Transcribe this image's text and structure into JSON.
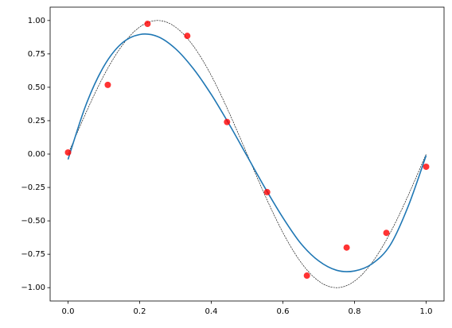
{
  "chart_data": {
    "type": "scatter",
    "x": [
      0,
      0.111,
      0.222,
      0.333,
      0.444,
      0.556,
      0.667,
      0.778,
      0.889,
      1
    ],
    "values": [
      0.012,
      0.518,
      0.975,
      0.885,
      0.24,
      -0.285,
      -0.91,
      -0.7,
      -0.59,
      -0.095
    ],
    "color": "#ff0000",
    "curves": [
      {
        "color": "#000000",
        "dashed": true,
        "x": [
          0,
          0.025,
          0.05,
          0.075,
          0.1,
          0.125,
          0.15,
          0.175,
          0.2,
          0.225,
          0.25,
          0.275,
          0.3,
          0.325,
          0.35,
          0.375,
          0.4,
          0.425,
          0.45,
          0.475,
          0.5,
          0.525,
          0.55,
          0.575,
          0.6,
          0.625,
          0.65,
          0.675,
          0.7,
          0.725,
          0.75,
          0.775,
          0.8,
          0.825,
          0.85,
          0.875,
          0.9,
          0.925,
          0.95,
          0.975,
          1
        ],
        "values": [
          0,
          0.156,
          0.309,
          0.454,
          0.588,
          0.707,
          0.809,
          0.891,
          0.951,
          0.988,
          1,
          0.988,
          0.951,
          0.891,
          0.809,
          0.707,
          0.588,
          0.454,
          0.309,
          0.156,
          0,
          -0.156,
          -0.309,
          -0.454,
          -0.588,
          -0.707,
          -0.809,
          -0.891,
          -0.951,
          -0.988,
          -1,
          -0.988,
          -0.951,
          -0.891,
          -0.809,
          -0.707,
          -0.588,
          -0.454,
          -0.309,
          -0.156,
          0
        ]
      },
      {
        "color": "#1f77b4",
        "dashed": false,
        "x": [
          0,
          0.05,
          0.1,
          0.15,
          0.2,
          0.25,
          0.3,
          0.35,
          0.4,
          0.45,
          0.5,
          0.55,
          0.6,
          0.65,
          0.7,
          0.75,
          0.8,
          0.85,
          0.9,
          0.95,
          1
        ],
        "values": [
          -0.04,
          0.368,
          0.657,
          0.829,
          0.895,
          0.88,
          0.789,
          0.639,
          0.446,
          0.223,
          -0.015,
          -0.253,
          -0.476,
          -0.669,
          -0.8,
          -0.87,
          -0.875,
          -0.82,
          -0.68,
          -0.39,
          -0.01
        ]
      }
    ],
    "xlim": [
      -0.05,
      1.05
    ],
    "ylim": [
      -1.1,
      1.1
    ],
    "xticks": [
      {
        "value": 0,
        "label": "0.0"
      },
      {
        "value": 0.2,
        "label": "0.2"
      },
      {
        "value": 0.4,
        "label": "0.4"
      },
      {
        "value": 0.6,
        "label": "0.6"
      },
      {
        "value": 0.8,
        "label": "0.8"
      },
      {
        "value": 1,
        "label": "1.0"
      }
    ],
    "yticks": [
      {
        "value": -1,
        "label": "−1.00"
      },
      {
        "value": -0.75,
        "label": "−0.75"
      },
      {
        "value": -0.5,
        "label": "−0.50"
      },
      {
        "value": -0.25,
        "label": "−0.25"
      },
      {
        "value": 0,
        "label": "0.00"
      },
      {
        "value": 0.25,
        "label": "0.25"
      },
      {
        "value": 0.5,
        "label": "0.50"
      },
      {
        "value": 0.75,
        "label": "0.75"
      },
      {
        "value": 1,
        "label": "1.00"
      }
    ]
  }
}
